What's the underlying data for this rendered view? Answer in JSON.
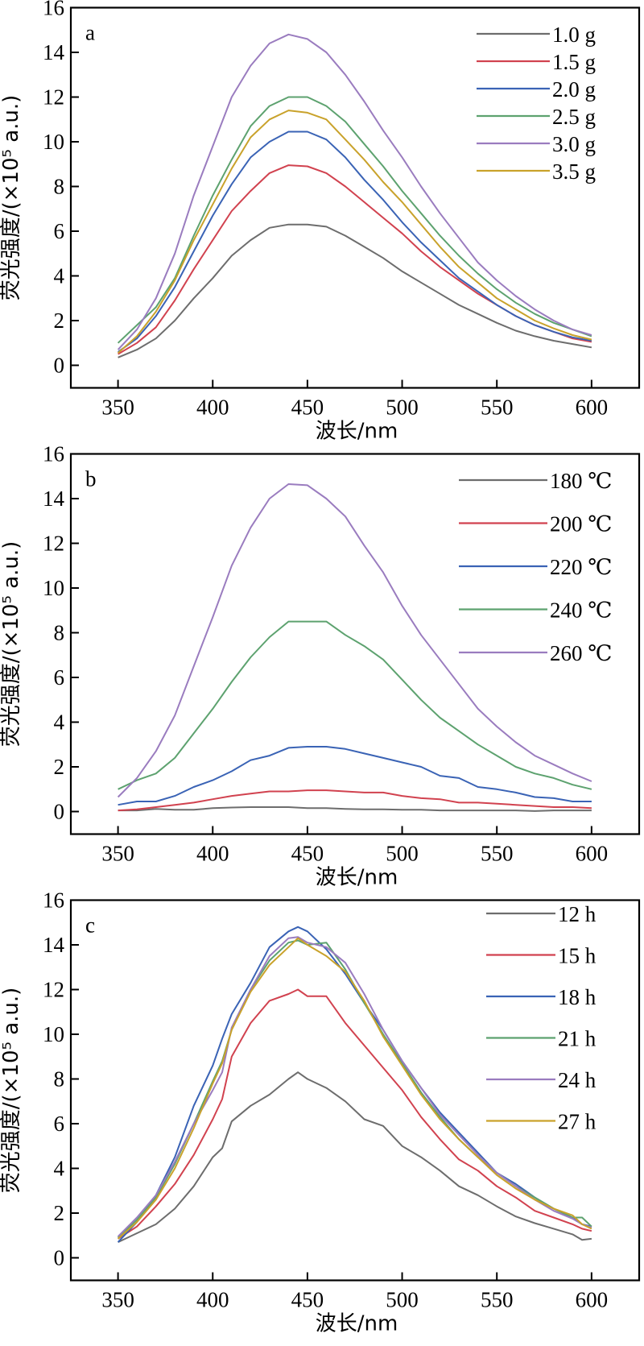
{
  "chart_data": [
    {
      "type": "line",
      "panel_label": "a",
      "xlabel": "波长/nm",
      "ylabel": "荧光强度/(×10⁵ a.u.)",
      "xlim": [
        350,
        600
      ],
      "ylim": [
        0,
        16
      ],
      "xticks": [
        350,
        400,
        450,
        500,
        550,
        600
      ],
      "yticks": [
        0,
        2,
        4,
        6,
        8,
        10,
        12,
        14,
        16
      ],
      "grid": false,
      "legend_position": "top-right",
      "x": [
        350,
        360,
        370,
        380,
        390,
        400,
        410,
        420,
        430,
        440,
        450,
        460,
        470,
        480,
        490,
        500,
        510,
        520,
        530,
        540,
        550,
        560,
        570,
        580,
        590,
        600
      ],
      "series": [
        {
          "name": "1.0 g",
          "color": "#6d6d6d",
          "values": [
            0.35,
            0.7,
            1.2,
            2.0,
            3.0,
            3.9,
            4.9,
            5.6,
            6.15,
            6.3,
            6.3,
            6.2,
            5.8,
            5.3,
            4.8,
            4.2,
            3.7,
            3.2,
            2.7,
            2.3,
            1.9,
            1.55,
            1.3,
            1.1,
            0.95,
            0.8
          ]
        },
        {
          "name": "1.5 g",
          "color": "#d1424f",
          "values": [
            0.5,
            1.0,
            1.7,
            2.9,
            4.3,
            5.6,
            6.9,
            7.8,
            8.6,
            8.95,
            8.9,
            8.6,
            8.0,
            7.3,
            6.6,
            5.9,
            5.1,
            4.4,
            3.8,
            3.2,
            2.7,
            2.2,
            1.8,
            1.5,
            1.2,
            1.05
          ]
        },
        {
          "name": "2.0 g",
          "color": "#3a63b5",
          "values": [
            0.6,
            1.2,
            2.2,
            3.5,
            5.1,
            6.7,
            8.1,
            9.3,
            10.0,
            10.45,
            10.45,
            10.1,
            9.3,
            8.3,
            7.4,
            6.4,
            5.5,
            4.7,
            3.9,
            3.3,
            2.7,
            2.2,
            1.8,
            1.5,
            1.25,
            1.1
          ]
        },
        {
          "name": "2.5 g",
          "color": "#5da26f",
          "values": [
            1.0,
            1.8,
            2.6,
            3.9,
            5.8,
            7.6,
            9.2,
            10.7,
            11.6,
            12.0,
            12.0,
            11.6,
            10.9,
            9.9,
            8.9,
            7.8,
            6.8,
            5.8,
            4.9,
            4.1,
            3.4,
            2.8,
            2.3,
            1.9,
            1.6,
            1.3
          ]
        },
        {
          "name": "3.0 g",
          "color": "#9a7cbf",
          "values": [
            0.7,
            1.6,
            3.0,
            5.0,
            7.6,
            9.8,
            12.0,
            13.4,
            14.4,
            14.8,
            14.6,
            14.0,
            13.0,
            11.8,
            10.5,
            9.3,
            8.0,
            6.8,
            5.7,
            4.6,
            3.8,
            3.1,
            2.5,
            2.0,
            1.6,
            1.35
          ]
        },
        {
          "name": "3.5 g",
          "color": "#c9a22b",
          "values": [
            0.55,
            1.3,
            2.4,
            3.8,
            5.6,
            7.2,
            8.8,
            10.2,
            11.0,
            11.4,
            11.3,
            11.0,
            10.1,
            9.2,
            8.2,
            7.3,
            6.3,
            5.3,
            4.4,
            3.7,
            3.0,
            2.5,
            2.0,
            1.65,
            1.35,
            1.15
          ]
        }
      ]
    },
    {
      "type": "line",
      "panel_label": "b",
      "xlabel": "波长/nm",
      "ylabel": "荧光强度/(×10⁵ a.u.)",
      "xlim": [
        350,
        600
      ],
      "ylim": [
        0,
        16
      ],
      "xticks": [
        350,
        400,
        450,
        500,
        550,
        600
      ],
      "yticks": [
        0,
        2,
        4,
        6,
        8,
        10,
        12,
        14,
        16
      ],
      "grid": false,
      "legend_position": "top-right",
      "x": [
        350,
        360,
        370,
        380,
        390,
        400,
        410,
        420,
        430,
        440,
        450,
        460,
        470,
        480,
        490,
        500,
        510,
        520,
        530,
        540,
        550,
        560,
        570,
        580,
        590,
        600
      ],
      "series": [
        {
          "name": "180 ℃",
          "color": "#6d6d6d",
          "values": [
            0.05,
            0.05,
            0.12,
            0.08,
            0.08,
            0.15,
            0.18,
            0.2,
            0.2,
            0.2,
            0.15,
            0.15,
            0.12,
            0.1,
            0.1,
            0.08,
            0.08,
            0.05,
            0.05,
            0.05,
            0.05,
            0.05,
            0.02,
            0.05,
            0.05,
            0.05
          ]
        },
        {
          "name": "200 ℃",
          "color": "#d1424f",
          "values": [
            0.05,
            0.1,
            0.2,
            0.3,
            0.4,
            0.55,
            0.7,
            0.8,
            0.9,
            0.9,
            0.95,
            0.95,
            0.9,
            0.85,
            0.85,
            0.7,
            0.6,
            0.55,
            0.4,
            0.4,
            0.35,
            0.3,
            0.25,
            0.2,
            0.2,
            0.15
          ]
        },
        {
          "name": "220 ℃",
          "color": "#3a63b5",
          "values": [
            0.3,
            0.45,
            0.45,
            0.7,
            1.1,
            1.4,
            1.8,
            2.3,
            2.5,
            2.85,
            2.9,
            2.9,
            2.8,
            2.6,
            2.4,
            2.2,
            2.0,
            1.6,
            1.5,
            1.1,
            1.0,
            0.85,
            0.65,
            0.6,
            0.45,
            0.45
          ]
        },
        {
          "name": "240 ℃",
          "color": "#5da26f",
          "values": [
            1.0,
            1.4,
            1.7,
            2.4,
            3.5,
            4.6,
            5.8,
            6.9,
            7.8,
            8.5,
            8.5,
            8.5,
            7.9,
            7.4,
            6.8,
            5.9,
            5.0,
            4.2,
            3.6,
            3.0,
            2.5,
            2.0,
            1.7,
            1.5,
            1.2,
            1.0
          ]
        },
        {
          "name": "260 ℃",
          "color": "#9a7cbf",
          "values": [
            0.65,
            1.5,
            2.7,
            4.3,
            6.5,
            8.7,
            11.0,
            12.7,
            14.0,
            14.65,
            14.6,
            14.0,
            13.2,
            11.9,
            10.7,
            9.2,
            7.9,
            6.8,
            5.7,
            4.6,
            3.8,
            3.1,
            2.5,
            2.1,
            1.7,
            1.35
          ]
        }
      ]
    },
    {
      "type": "line",
      "panel_label": "c",
      "xlabel": "波长/nm",
      "ylabel": "荧光强度/(×10⁵ a.u.)",
      "xlim": [
        350,
        600
      ],
      "ylim": [
        0,
        16
      ],
      "xticks": [
        350,
        400,
        450,
        500,
        550,
        600
      ],
      "yticks": [
        0,
        2,
        4,
        6,
        8,
        10,
        12,
        14,
        16
      ],
      "grid": false,
      "legend_position": "top-right",
      "x": [
        350,
        360,
        370,
        380,
        390,
        400,
        405,
        410,
        420,
        430,
        440,
        445,
        450,
        460,
        470,
        480,
        490,
        500,
        510,
        520,
        530,
        540,
        550,
        560,
        570,
        580,
        590,
        595,
        600
      ],
      "series": [
        {
          "name": "12 h",
          "color": "#6d6d6d",
          "values": [
            0.7,
            1.1,
            1.5,
            2.2,
            3.2,
            4.5,
            4.9,
            6.1,
            6.8,
            7.3,
            8.0,
            8.3,
            8.0,
            7.6,
            7.0,
            6.2,
            5.9,
            5.0,
            4.5,
            3.9,
            3.2,
            2.8,
            2.3,
            1.85,
            1.55,
            1.3,
            1.05,
            0.8,
            0.85
          ]
        },
        {
          "name": "15 h",
          "color": "#d1424f",
          "values": [
            0.85,
            1.4,
            2.3,
            3.3,
            4.6,
            6.2,
            7.1,
            9.0,
            10.5,
            11.5,
            11.8,
            12.0,
            11.7,
            11.7,
            10.5,
            9.5,
            8.5,
            7.5,
            6.3,
            5.3,
            4.4,
            3.9,
            3.2,
            2.7,
            2.1,
            1.8,
            1.5,
            1.3,
            1.2
          ]
        },
        {
          "name": "18 h",
          "color": "#3a63b5",
          "values": [
            0.7,
            1.6,
            2.8,
            4.5,
            6.8,
            8.6,
            9.8,
            10.9,
            12.3,
            13.9,
            14.6,
            14.8,
            14.6,
            13.8,
            12.7,
            11.4,
            10.2,
            8.8,
            7.6,
            6.5,
            5.6,
            4.7,
            3.8,
            3.3,
            2.7,
            2.2,
            1.8,
            1.5,
            1.4
          ]
        },
        {
          "name": "21 h",
          "color": "#5da26f",
          "values": [
            0.9,
            1.7,
            2.7,
            4.2,
            6.0,
            7.9,
            8.8,
            10.2,
            12.0,
            13.3,
            14.1,
            14.2,
            14.0,
            14.1,
            12.9,
            11.4,
            10.0,
            8.7,
            7.4,
            6.3,
            5.3,
            4.5,
            3.8,
            3.2,
            2.7,
            2.2,
            1.8,
            1.8,
            1.4
          ]
        },
        {
          "name": "24 h",
          "color": "#9a7cbf",
          "values": [
            0.95,
            1.8,
            2.8,
            4.3,
            6.0,
            7.5,
            8.3,
            10.3,
            12.0,
            13.5,
            14.3,
            14.35,
            14.1,
            13.9,
            13.2,
            11.8,
            10.2,
            8.8,
            7.6,
            6.4,
            5.5,
            4.6,
            3.8,
            3.2,
            2.6,
            2.1,
            1.75,
            1.5,
            1.35
          ]
        },
        {
          "name": "27 h",
          "color": "#c9a22b",
          "values": [
            0.85,
            1.6,
            2.6,
            4.0,
            5.8,
            7.8,
            8.7,
            10.2,
            11.9,
            13.1,
            13.9,
            14.3,
            14.0,
            13.5,
            12.8,
            11.5,
            9.9,
            8.6,
            7.3,
            6.2,
            5.3,
            4.5,
            3.7,
            3.1,
            2.6,
            2.2,
            1.9,
            1.5,
            1.3
          ]
        }
      ]
    }
  ]
}
